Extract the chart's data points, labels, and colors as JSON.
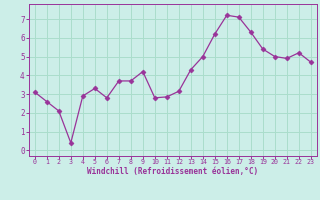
{
  "x": [
    0,
    1,
    2,
    3,
    4,
    5,
    6,
    7,
    8,
    9,
    10,
    11,
    12,
    13,
    14,
    15,
    16,
    17,
    18,
    19,
    20,
    21,
    22,
    23
  ],
  "y": [
    3.1,
    2.6,
    2.1,
    0.4,
    2.9,
    3.3,
    2.8,
    3.7,
    3.7,
    4.2,
    2.8,
    2.85,
    3.15,
    4.3,
    5.0,
    6.2,
    7.2,
    7.1,
    6.3,
    5.4,
    5.0,
    4.9,
    5.2,
    4.7
  ],
  "line_color": "#993399",
  "marker": "D",
  "marker_size": 2.5,
  "bg_color": "#cceee8",
  "grid_color": "#aaddcc",
  "xlabel": "Windchill (Refroidissement éolien,°C)",
  "xlabel_color": "#993399",
  "tick_color": "#993399",
  "ylim": [
    -0.3,
    7.8
  ],
  "xlim": [
    -0.5,
    23.5
  ],
  "yticks": [
    0,
    1,
    2,
    3,
    4,
    5,
    6,
    7
  ],
  "xticks": [
    0,
    1,
    2,
    3,
    4,
    5,
    6,
    7,
    8,
    9,
    10,
    11,
    12,
    13,
    14,
    15,
    16,
    17,
    18,
    19,
    20,
    21,
    22,
    23
  ],
  "title_color": "#993399",
  "spine_color": "#993399"
}
